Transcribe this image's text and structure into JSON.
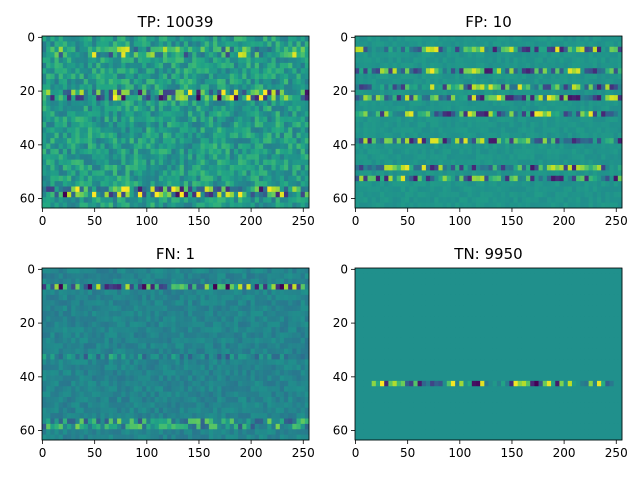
{
  "chart_data": [
    {
      "type": "heatmap",
      "title": "TP: 10039",
      "colormap": "viridis",
      "xlim": [
        0,
        255
      ],
      "ylim": [
        63,
        0
      ],
      "xticks": [
        "0",
        "50",
        "100",
        "150",
        "200",
        "250"
      ],
      "yticks": [
        "0",
        "20",
        "40",
        "60"
      ],
      "pattern": "dense noise, bright bands near rows 6, 22, 57-58"
    },
    {
      "type": "heatmap",
      "title": "FP: 10",
      "colormap": "viridis",
      "xlim": [
        0,
        255
      ],
      "ylim": [
        63,
        0
      ],
      "xticks": [
        "0",
        "50",
        "100",
        "150",
        "200",
        "250"
      ],
      "yticks": [
        "0",
        "20",
        "40",
        "60"
      ],
      "pattern": "uniform background with horizontal noisy bands"
    },
    {
      "type": "heatmap",
      "title": "FN: 1",
      "colormap": "viridis",
      "xlim": [
        0,
        255
      ],
      "ylim": [
        63,
        0
      ],
      "xticks": [
        "0",
        "50",
        "100",
        "150",
        "200",
        "250"
      ],
      "yticks": [
        "0",
        "20",
        "40",
        "60"
      ],
      "pattern": "low-amplitude noise, bright band near row 7 and row 57"
    },
    {
      "type": "heatmap",
      "title": "TN: 9950",
      "colormap": "viridis",
      "xlim": [
        0,
        255
      ],
      "ylim": [
        63,
        0
      ],
      "xticks": [
        "0",
        "50",
        "100",
        "150",
        "200",
        "250"
      ],
      "yticks": [
        "0",
        "20",
        "40",
        "60"
      ],
      "pattern": "constant field with single noisy row near 43"
    }
  ]
}
